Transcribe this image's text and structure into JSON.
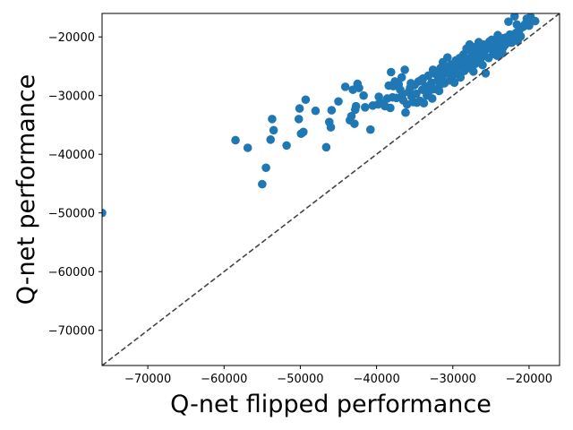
{
  "chart_data": {
    "type": "scatter",
    "title": "",
    "xlabel": "Q-net flipped performance",
    "ylabel": "Q-net performance",
    "xlim": [
      -76000,
      -16000
    ],
    "ylim": [
      -76000,
      -16000
    ],
    "xticks": [
      -70000,
      -60000,
      -50000,
      -40000,
      -30000,
      -20000
    ],
    "yticks": [
      -70000,
      -60000,
      -50000,
      -40000,
      -30000,
      -20000
    ],
    "xtick_labels": [
      "−70000",
      "−60000",
      "−50000",
      "−40000",
      "−30000",
      "−20000"
    ],
    "ytick_labels": [
      "−70000",
      "−60000",
      "−50000",
      "−40000",
      "−30000",
      "−20000"
    ],
    "grid": false,
    "marker_color": "#1f77b4",
    "reference_line": {
      "style": "dashed",
      "color": "#444444",
      "from": [
        -76000,
        -76000
      ],
      "to": [
        -16000,
        -16000
      ]
    },
    "points": [
      [
        -76000,
        -50000
      ],
      [
        -58500,
        -37600
      ],
      [
        -56900,
        -38900
      ],
      [
        -55000,
        -45100
      ],
      [
        -54500,
        -42300
      ],
      [
        -53900,
        -37500
      ],
      [
        -53700,
        -34000
      ],
      [
        -53500,
        -35900
      ],
      [
        -51800,
        -38500
      ],
      [
        -50200,
        -34000
      ],
      [
        -50100,
        -32200
      ],
      [
        -49900,
        -36500
      ],
      [
        -49600,
        -36200
      ],
      [
        -49300,
        -30700
      ],
      [
        -48000,
        -32600
      ],
      [
        -46600,
        -38800
      ],
      [
        -46200,
        -34500
      ],
      [
        -46000,
        -35400
      ],
      [
        -45900,
        -32500
      ],
      [
        -45000,
        -31000
      ],
      [
        -44100,
        -28500
      ],
      [
        -43500,
        -34200
      ],
      [
        -43300,
        -33500
      ],
      [
        -43100,
        -29000
      ],
      [
        -42900,
        -34800
      ],
      [
        -42800,
        -32400
      ],
      [
        -42700,
        -31800
      ],
      [
        -42500,
        -28000
      ],
      [
        -42300,
        -28700
      ],
      [
        -41700,
        -30000
      ],
      [
        -41500,
        -32000
      ],
      [
        -40800,
        -35800
      ],
      [
        -40500,
        -31700
      ],
      [
        -39800,
        -31500
      ],
      [
        -39700,
        -30200
      ],
      [
        -39200,
        -31300
      ],
      [
        -38900,
        -31800
      ],
      [
        -38600,
        -30500
      ],
      [
        -38400,
        -28300
      ],
      [
        -38200,
        -32100
      ],
      [
        -38100,
        -26000
      ],
      [
        -37800,
        -28400
      ],
      [
        -37600,
        -27600
      ],
      [
        -37400,
        -30400
      ],
      [
        -37100,
        -28100
      ],
      [
        -36900,
        -29000
      ],
      [
        -36700,
        -26900
      ],
      [
        -36500,
        -30800
      ],
      [
        -36300,
        -25600
      ],
      [
        -36200,
        -32900
      ],
      [
        -36000,
        -31500
      ],
      [
        -35800,
        -29400
      ],
      [
        -35600,
        -28700
      ],
      [
        -35400,
        -30200
      ],
      [
        -35200,
        -31100
      ],
      [
        -35000,
        -28200
      ],
      [
        -34800,
        -29700
      ],
      [
        -34500,
        -27600
      ],
      [
        -34300,
        -30900
      ],
      [
        -34000,
        -29000
      ],
      [
        -33800,
        -31300
      ],
      [
        -33600,
        -28400
      ],
      [
        -33400,
        -30000
      ],
      [
        -33200,
        -26600
      ],
      [
        -33000,
        -29100
      ],
      [
        -32800,
        -27800
      ],
      [
        -32700,
        -30500
      ],
      [
        -32500,
        -28900
      ],
      [
        -32300,
        -26300
      ],
      [
        -32000,
        -27500
      ],
      [
        -31800,
        -29200
      ],
      [
        -31600,
        -25300
      ],
      [
        -31400,
        -26800
      ],
      [
        -31300,
        -24300
      ],
      [
        -31100,
        -27900
      ],
      [
        -31000,
        -25800
      ],
      [
        -30800,
        -26100
      ],
      [
        -30700,
        -23500
      ],
      [
        -30500,
        -25000
      ],
      [
        -30400,
        -27400
      ],
      [
        -30200,
        -24700
      ],
      [
        -30000,
        -26600
      ],
      [
        -29900,
        -25400
      ],
      [
        -29800,
        -27800
      ],
      [
        -29600,
        -24000
      ],
      [
        -29500,
        -26200
      ],
      [
        -29300,
        -25000
      ],
      [
        -29100,
        -23600
      ],
      [
        -29000,
        -26900
      ],
      [
        -28800,
        -24900
      ],
      [
        -28600,
        -23000
      ],
      [
        -28500,
        -25800
      ],
      [
        -28300,
        -24200
      ],
      [
        -28200,
        -22000
      ],
      [
        -28000,
        -25300
      ],
      [
        -27900,
        -23700
      ],
      [
        -27800,
        -21300
      ],
      [
        -27600,
        -24800
      ],
      [
        -27500,
        -22600
      ],
      [
        -27300,
        -25900
      ],
      [
        -27200,
        -23400
      ],
      [
        -27000,
        -21700
      ],
      [
        -26900,
        -24400
      ],
      [
        -26700,
        -22900
      ],
      [
        -26600,
        -20900
      ],
      [
        -26400,
        -23900
      ],
      [
        -26300,
        -22300
      ],
      [
        -26100,
        -24800
      ],
      [
        -26000,
        -21300
      ],
      [
        -25800,
        -23200
      ],
      [
        -25700,
        -26200
      ],
      [
        -25500,
        -22000
      ],
      [
        -25300,
        -23600
      ],
      [
        -25100,
        -21700
      ],
      [
        -24900,
        -20500
      ],
      [
        -24700,
        -22900
      ],
      [
        -24500,
        -21000
      ],
      [
        -24300,
        -22600
      ],
      [
        -24100,
        -19700
      ],
      [
        -23900,
        -21500
      ],
      [
        -23700,
        -20600
      ],
      [
        -23500,
        -22800
      ],
      [
        -23300,
        -20200
      ],
      [
        -23100,
        -21300
      ],
      [
        -22900,
        -20800
      ],
      [
        -22700,
        -17400
      ],
      [
        -22500,
        -19600
      ],
      [
        -22300,
        -21000
      ],
      [
        -22100,
        -20100
      ],
      [
        -21900,
        -16500
      ],
      [
        -21700,
        -19300
      ],
      [
        -21500,
        -20700
      ],
      [
        -21300,
        -18900
      ],
      [
        -21100,
        -19900
      ],
      [
        -20800,
        -18300
      ],
      [
        -20500,
        -17800
      ],
      [
        -20200,
        -17300
      ],
      [
        -20000,
        -18100
      ],
      [
        -19800,
        -16600
      ],
      [
        -19200,
        -17300
      ],
      [
        -35500,
        -27900
      ],
      [
        -34100,
        -27300
      ],
      [
        -32900,
        -28300
      ],
      [
        -31900,
        -26400
      ],
      [
        -30600,
        -25400
      ],
      [
        -29700,
        -25900
      ],
      [
        -28900,
        -24100
      ],
      [
        -27700,
        -22300
      ],
      [
        -26800,
        -23100
      ],
      [
        -25600,
        -21600
      ],
      [
        -24600,
        -21900
      ],
      [
        -23400,
        -21800
      ],
      [
        -22400,
        -19900
      ],
      [
        -37900,
        -30300
      ],
      [
        -36600,
        -29800
      ],
      [
        -34700,
        -31200
      ],
      [
        -33900,
        -27100
      ],
      [
        -32600,
        -25600
      ],
      [
        -31700,
        -28200
      ],
      [
        -30300,
        -26000
      ],
      [
        -29200,
        -24600
      ],
      [
        -28100,
        -23900
      ],
      [
        -27100,
        -24600
      ],
      [
        -26200,
        -22000
      ],
      [
        -25200,
        -20800
      ],
      [
        -24200,
        -23200
      ],
      [
        -23000,
        -20100
      ],
      [
        -21600,
        -17900
      ],
      [
        -20300,
        -16900
      ]
    ]
  }
}
